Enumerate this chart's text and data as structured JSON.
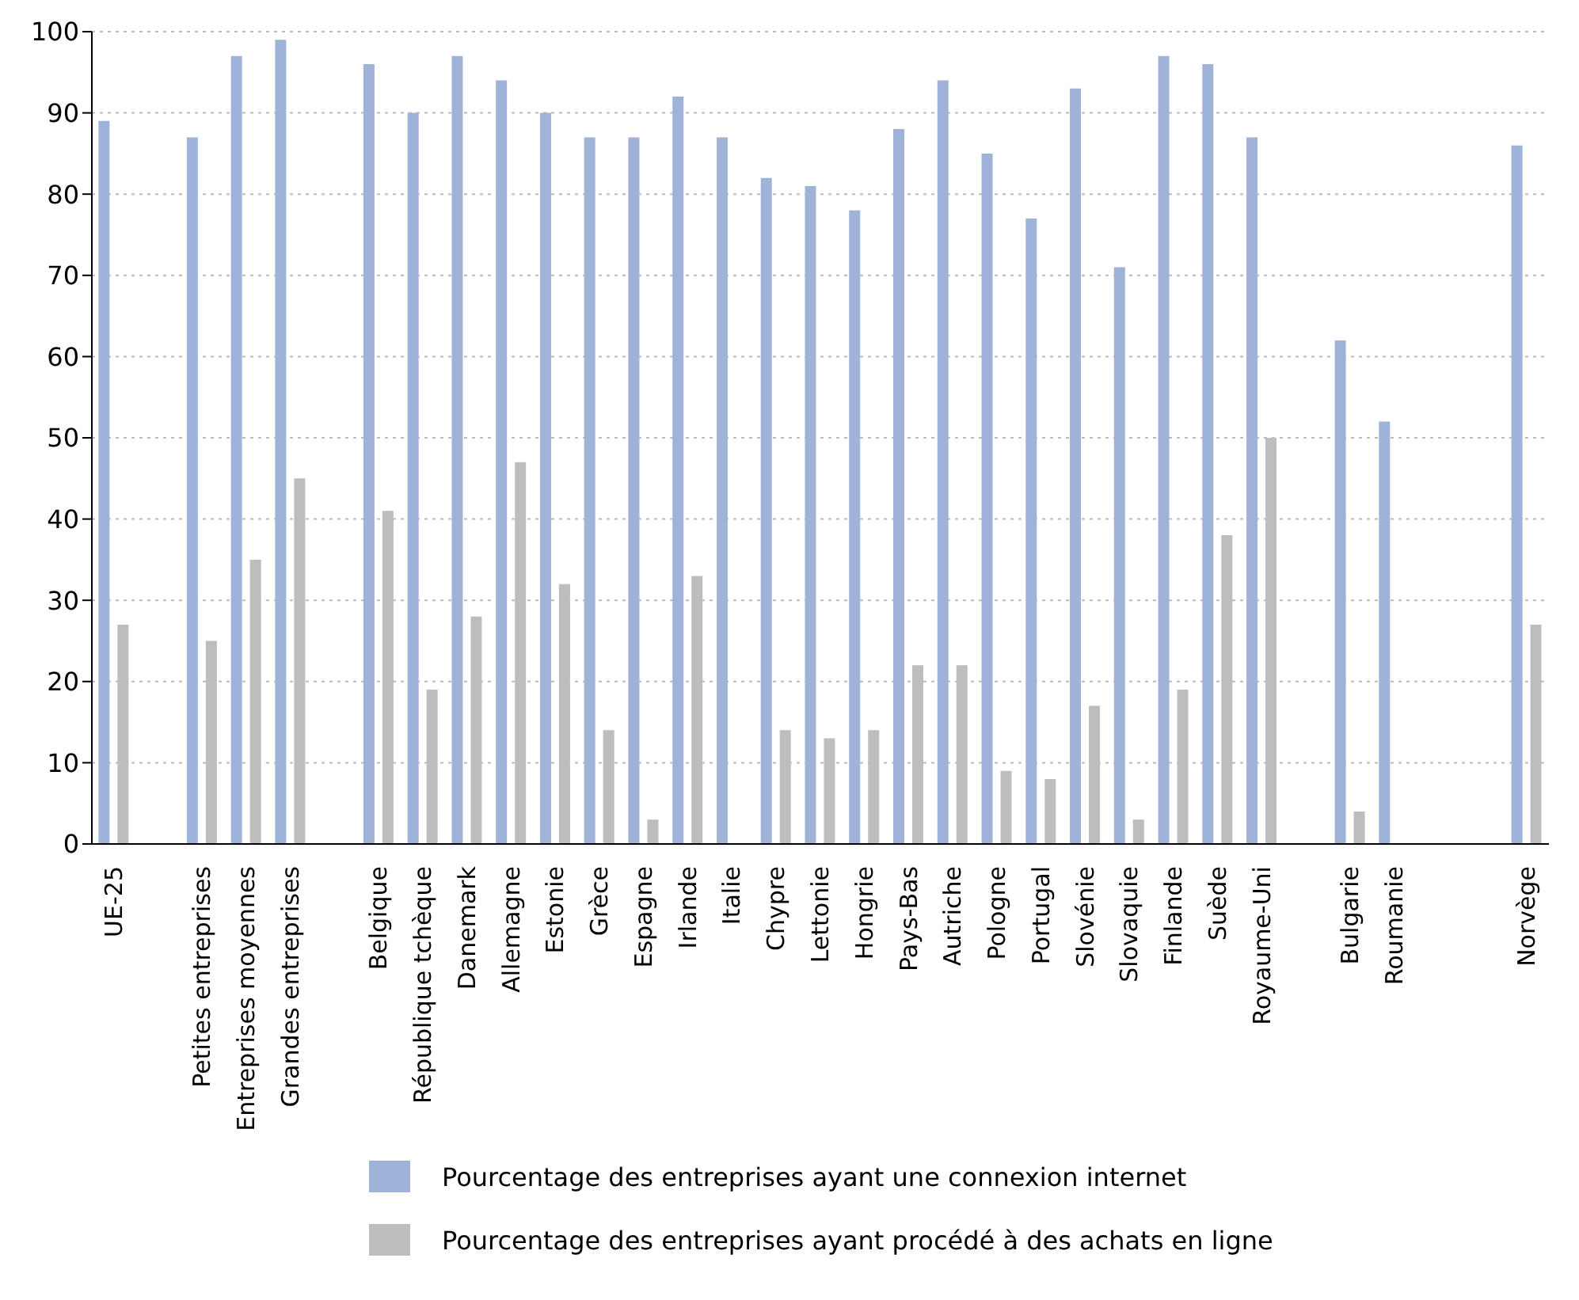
{
  "chart_data": {
    "type": "bar",
    "categories": [
      "UE-25",
      null,
      "Petites entreprises",
      "Entreprises moyennes",
      "Grandes entreprises",
      null,
      "Belgique",
      "République tchèque",
      "Danemark",
      "Allemagne",
      "Estonie",
      "Grèce",
      "Espagne",
      "Irlande",
      "Italie",
      "Chypre",
      "Lettonie",
      "Hongrie",
      "Pays-Bas",
      "Autriche",
      "Pologne",
      "Portugal",
      "Slovénie",
      "Slovaquie",
      "Finlande",
      "Suède",
      "Royaume-Uni",
      null,
      "Bulgarie",
      "Roumanie",
      null,
      null,
      "Norvège"
    ],
    "series": [
      {
        "name": "Pourcentage des entreprises ayant une connexion internet",
        "color": "#9fb3d9",
        "values": [
          89,
          null,
          87,
          97,
          99,
          null,
          96,
          90,
          97,
          94,
          90,
          87,
          87,
          92,
          87,
          82,
          81,
          78,
          88,
          94,
          85,
          77,
          93,
          71,
          97,
          96,
          87,
          null,
          62,
          52,
          null,
          null,
          86
        ]
      },
      {
        "name": "Pourcentage des entreprises ayant procédé à des achats en ligne",
        "color": "#bdbdbd",
        "values": [
          27,
          null,
          25,
          35,
          45,
          null,
          41,
          19,
          28,
          47,
          32,
          14,
          3,
          33,
          null,
          14,
          13,
          14,
          22,
          22,
          9,
          8,
          17,
          3,
          19,
          38,
          50,
          null,
          4,
          null,
          null,
          null,
          27
        ]
      }
    ],
    "ylim": [
      0,
      100
    ],
    "yticks": [
      0,
      10,
      20,
      30,
      40,
      50,
      60,
      70,
      80,
      90,
      100
    ],
    "grid": "y",
    "legend": "bottom"
  }
}
